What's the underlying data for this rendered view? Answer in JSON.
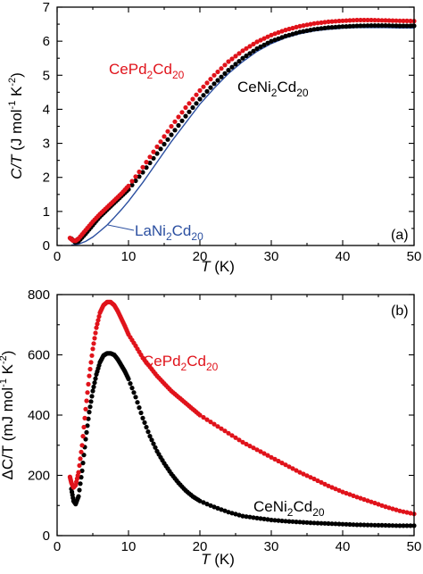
{
  "figure": {
    "colors": {
      "cepd": "#e0131b",
      "ceni": "#000000",
      "lani": "#2b4fa0"
    }
  },
  "chart_data": [
    {
      "panel": "(a)",
      "type": "scatter",
      "xlabel_parts": [
        "T",
        " (K)"
      ],
      "ylabel_parts": [
        "C/T",
        " (J mol",
        "-1",
        " K",
        "-2",
        ")"
      ],
      "xlim": [
        0,
        50
      ],
      "ylim": [
        0,
        7
      ],
      "xticks": [
        0,
        10,
        20,
        30,
        40,
        50
      ],
      "yticks": [
        0,
        1,
        2,
        3,
        4,
        5,
        6,
        7
      ],
      "grid": false,
      "series": [
        {
          "name": "CePd2Cd20",
          "label": {
            "base1": "CePd",
            "sub1": "2",
            "base2": "Cd",
            "sub2": "20"
          },
          "style": "markers",
          "color": "#e0131b",
          "x": [
            1.8,
            2.2,
            2.6,
            3,
            4,
            5,
            6,
            7,
            8,
            9,
            10,
            12,
            14,
            16,
            18,
            20,
            22,
            24,
            26,
            28,
            30,
            32,
            34,
            36,
            38,
            40,
            42,
            44,
            46,
            48,
            50
          ],
          "y": [
            0.22,
            0.15,
            0.14,
            0.2,
            0.45,
            0.7,
            0.92,
            1.12,
            1.32,
            1.52,
            1.75,
            2.3,
            2.9,
            3.5,
            4.05,
            4.55,
            5.0,
            5.4,
            5.72,
            5.98,
            6.18,
            6.33,
            6.44,
            6.52,
            6.57,
            6.6,
            6.62,
            6.62,
            6.61,
            6.6,
            6.59
          ]
        },
        {
          "name": "CeNi2Cd20",
          "label": {
            "base1": "CeNi",
            "sub1": "2",
            "base2": "Cd",
            "sub2": "20"
          },
          "style": "markers",
          "color": "#000000",
          "x": [
            2,
            2.5,
            3,
            4,
            5,
            6,
            7,
            8,
            9,
            10,
            12,
            14,
            16,
            18,
            20,
            22,
            24,
            26,
            28,
            30,
            32,
            34,
            36,
            38,
            40,
            42,
            44,
            46,
            48,
            50
          ],
          "y": [
            0.2,
            0.1,
            0.12,
            0.35,
            0.6,
            0.85,
            1.05,
            1.25,
            1.45,
            1.65,
            2.15,
            2.7,
            3.25,
            3.8,
            4.3,
            4.75,
            5.15,
            5.5,
            5.78,
            6.0,
            6.15,
            6.27,
            6.35,
            6.4,
            6.43,
            6.45,
            6.46,
            6.46,
            6.45,
            6.45
          ]
        },
        {
          "name": "LaNi2Cd20",
          "label": {
            "base1": "LaNi",
            "sub1": "2",
            "base2": "Cd",
            "sub2": "20"
          },
          "style": "line",
          "color": "#2b4fa0",
          "x": [
            2,
            3,
            4,
            5,
            6,
            7,
            8,
            9,
            10,
            12,
            14,
            16,
            18,
            20,
            22,
            24,
            26,
            28,
            30,
            32,
            34,
            36,
            38,
            40,
            42,
            44,
            46,
            48,
            50
          ],
          "y": [
            0.01,
            0.04,
            0.12,
            0.25,
            0.42,
            0.6,
            0.82,
            1.05,
            1.3,
            1.85,
            2.45,
            3.05,
            3.6,
            4.15,
            4.62,
            5.05,
            5.4,
            5.7,
            5.93,
            6.1,
            6.22,
            6.3,
            6.35,
            6.38,
            6.4,
            6.4,
            6.4,
            6.39,
            6.39
          ]
        }
      ]
    },
    {
      "panel": "(b)",
      "type": "scatter",
      "xlabel_parts": [
        "T",
        " (K)"
      ],
      "ylabel_parts": [
        "ΔC/T",
        " (mJ mol",
        "-1",
        " K",
        "-2",
        ")"
      ],
      "xlim": [
        0,
        50
      ],
      "ylim": [
        0,
        800
      ],
      "xticks": [
        0,
        10,
        20,
        30,
        40,
        50
      ],
      "yticks": [
        0,
        200,
        400,
        600,
        800
      ],
      "grid": false,
      "series": [
        {
          "name": "CePd2Cd20",
          "label": {
            "base1": "CePd",
            "sub1": "2",
            "base2": "Cd",
            "sub2": "20"
          },
          "style": "markers",
          "color": "#e0131b",
          "x": [
            1.8,
            2,
            2.3,
            2.6,
            3,
            3.5,
            4,
            4.5,
            5,
            5.5,
            6,
            6.5,
            7,
            7.5,
            8,
            8.5,
            9,
            9.5,
            10,
            11,
            12,
            13,
            14,
            15,
            16,
            17,
            18,
            19,
            20,
            22,
            24,
            26,
            28,
            30,
            32,
            34,
            36,
            38,
            40,
            42,
            44,
            46,
            48,
            50
          ],
          "y": [
            195,
            175,
            160,
            168,
            210,
            300,
            420,
            530,
            620,
            690,
            740,
            765,
            775,
            775,
            765,
            745,
            720,
            695,
            668,
            630,
            590,
            560,
            530,
            505,
            480,
            460,
            440,
            420,
            400,
            370,
            340,
            310,
            285,
            260,
            235,
            210,
            188,
            165,
            145,
            128,
            112,
            96,
            82,
            72
          ]
        },
        {
          "name": "CeNi2Cd20",
          "label": {
            "base1": "CeNi",
            "sub1": "2",
            "base2": "Cd",
            "sub2": "20"
          },
          "style": "markers",
          "color": "#000000",
          "x": [
            2,
            2.3,
            2.6,
            3,
            3.5,
            4,
            4.5,
            5,
            5.5,
            6,
            6.5,
            7,
            7.5,
            8,
            8.5,
            9,
            9.5,
            10,
            11,
            12,
            13,
            14,
            15,
            16,
            17,
            18,
            19,
            20,
            22,
            24,
            26,
            28,
            30,
            32,
            34,
            36,
            38,
            40,
            42,
            44,
            46,
            48,
            50
          ],
          "y": [
            155,
            115,
            105,
            130,
            215,
            320,
            410,
            480,
            535,
            575,
            598,
            605,
            605,
            600,
            585,
            565,
            545,
            520,
            460,
            390,
            330,
            280,
            240,
            205,
            175,
            150,
            130,
            115,
            95,
            78,
            65,
            58,
            52,
            48,
            45,
            42,
            40,
            38,
            36,
            35,
            34,
            33,
            33
          ]
        }
      ]
    }
  ]
}
